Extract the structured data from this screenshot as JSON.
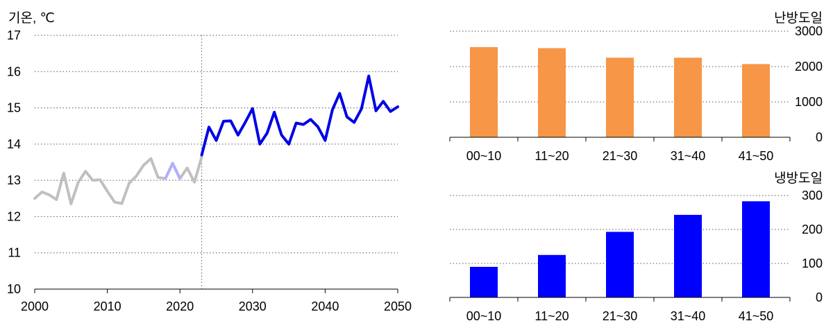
{
  "chart_data": [
    {
      "type": "line",
      "ylabel": "기온, ℃",
      "xlim": [
        2000,
        2050
      ],
      "ylim": [
        10,
        17
      ],
      "x_ticks": [
        "2000",
        "2010",
        "2020",
        "2030",
        "2040",
        "2050"
      ],
      "y_ticks": [
        "17",
        "16",
        "15",
        "14",
        "13",
        "12",
        "11",
        "10"
      ],
      "grid": true,
      "vline_x": 2023,
      "series": [
        {
          "color": "#c0c0c0",
          "x": [
            2000,
            2001,
            2002,
            2003,
            2004,
            2005,
            2006,
            2007,
            2008,
            2009,
            2010,
            2011,
            2012,
            2013,
            2014,
            2015,
            2016,
            2017,
            2018,
            2019,
            2020,
            2021,
            2022,
            2023
          ],
          "values": [
            12.5,
            12.68,
            12.6,
            12.47,
            13.2,
            12.35,
            12.95,
            13.25,
            13.0,
            13.02,
            12.7,
            12.4,
            12.36,
            12.92,
            13.12,
            13.42,
            13.6,
            13.08,
            13.05,
            13.47,
            13.05,
            13.34,
            12.95,
            13.65
          ]
        },
        {
          "color": "#b0b0ff",
          "x": [
            2018,
            2019,
            2020
          ],
          "values": [
            13.05,
            13.47,
            13.05
          ]
        },
        {
          "color": "#0000e6",
          "x": [
            2023,
            2024,
            2025,
            2026,
            2027,
            2028,
            2029,
            2030,
            2031,
            2032,
            2033,
            2034,
            2035,
            2036,
            2037,
            2038,
            2039,
            2040,
            2041,
            2042,
            2043,
            2044,
            2045,
            2046,
            2047,
            2048,
            2049,
            2050
          ],
          "values": [
            13.7,
            14.47,
            14.1,
            14.63,
            14.64,
            14.25,
            14.6,
            14.98,
            14.0,
            14.3,
            14.88,
            14.25,
            14.0,
            14.58,
            14.54,
            14.68,
            14.48,
            14.1,
            14.95,
            15.4,
            14.75,
            14.6,
            14.97,
            15.88,
            14.92,
            15.18,
            14.9,
            15.03
          ]
        }
      ]
    },
    {
      "type": "bar",
      "title": "난방도일",
      "categories": [
        "00~10",
        "11~20",
        "21~30",
        "31~40",
        "41~50"
      ],
      "values": [
        2550,
        2520,
        2250,
        2250,
        2070
      ],
      "ylim": [
        0,
        3000
      ],
      "y_ticks": [
        "3000",
        "2000",
        "1000",
        "0"
      ],
      "color": "#f79646",
      "grid": true
    },
    {
      "type": "bar",
      "title": "냉방도일",
      "categories": [
        "00~10",
        "11~20",
        "21~30",
        "31~40",
        "41~50"
      ],
      "values": [
        90,
        125,
        193,
        243,
        283
      ],
      "ylim": [
        0,
        300
      ],
      "y_ticks": [
        "300",
        "200",
        "100",
        "0"
      ],
      "color": "#0000ff",
      "grid": true
    }
  ]
}
